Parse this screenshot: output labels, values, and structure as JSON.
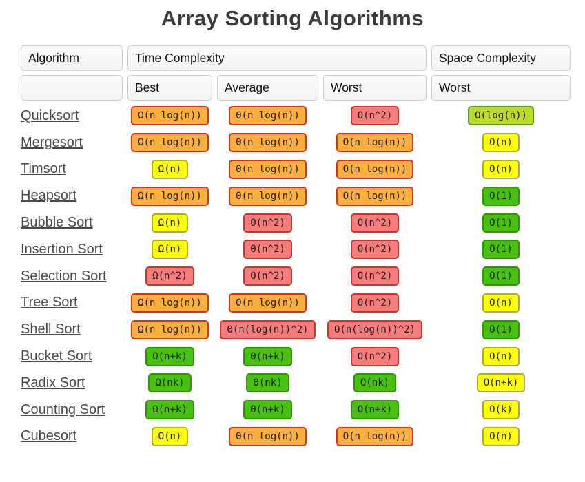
{
  "title": "Array Sorting Algorithms",
  "table": {
    "header": {
      "algorithm": "Algorithm",
      "time_complexity": "Time Complexity",
      "space_complexity": "Space Complexity",
      "sub_blank": "",
      "sub_best": "Best",
      "sub_average": "Average",
      "sub_worst_time": "Worst",
      "sub_worst_space": "Worst"
    },
    "palette": {
      "orange": {
        "bg": "#FBAF3F",
        "border": "#CC342B"
      },
      "red": {
        "bg": "#F77C7C",
        "border": "#CC342B"
      },
      "yellow": {
        "bg": "#FFFF00",
        "border": "#ACA84A"
      },
      "green": {
        "bg": "#48C10E",
        "border": "#2F9608"
      },
      "yellowgreen": {
        "bg": "#BBDB2D",
        "border": "#53A11E"
      }
    },
    "rows": [
      {
        "name": "Quicksort",
        "best": {
          "text": "Ω(n log(n))",
          "color": "orange"
        },
        "average": {
          "text": "Θ(n log(n))",
          "color": "orange"
        },
        "worst": {
          "text": "O(n^2)",
          "color": "red"
        },
        "space": {
          "text": "O(log(n))",
          "color": "yellowgreen"
        }
      },
      {
        "name": "Mergesort",
        "best": {
          "text": "Ω(n log(n))",
          "color": "orange"
        },
        "average": {
          "text": "Θ(n log(n))",
          "color": "orange"
        },
        "worst": {
          "text": "O(n log(n))",
          "color": "orange"
        },
        "space": {
          "text": "O(n)",
          "color": "yellow"
        }
      },
      {
        "name": "Timsort",
        "best": {
          "text": "Ω(n)",
          "color": "yellow"
        },
        "average": {
          "text": "Θ(n log(n))",
          "color": "orange"
        },
        "worst": {
          "text": "O(n log(n))",
          "color": "orange"
        },
        "space": {
          "text": "O(n)",
          "color": "yellow"
        }
      },
      {
        "name": "Heapsort",
        "best": {
          "text": "Ω(n log(n))",
          "color": "orange"
        },
        "average": {
          "text": "Θ(n log(n))",
          "color": "orange"
        },
        "worst": {
          "text": "O(n log(n))",
          "color": "orange"
        },
        "space": {
          "text": "O(1)",
          "color": "green"
        }
      },
      {
        "name": "Bubble Sort",
        "best": {
          "text": "Ω(n)",
          "color": "yellow"
        },
        "average": {
          "text": "Θ(n^2)",
          "color": "red"
        },
        "worst": {
          "text": "O(n^2)",
          "color": "red"
        },
        "space": {
          "text": "O(1)",
          "color": "green"
        }
      },
      {
        "name": "Insertion Sort",
        "best": {
          "text": "Ω(n)",
          "color": "yellow"
        },
        "average": {
          "text": "Θ(n^2)",
          "color": "red"
        },
        "worst": {
          "text": "O(n^2)",
          "color": "red"
        },
        "space": {
          "text": "O(1)",
          "color": "green"
        }
      },
      {
        "name": "Selection Sort",
        "best": {
          "text": "Ω(n^2)",
          "color": "red"
        },
        "average": {
          "text": "Θ(n^2)",
          "color": "red"
        },
        "worst": {
          "text": "O(n^2)",
          "color": "red"
        },
        "space": {
          "text": "O(1)",
          "color": "green"
        }
      },
      {
        "name": "Tree Sort",
        "best": {
          "text": "Ω(n log(n))",
          "color": "orange"
        },
        "average": {
          "text": "Θ(n log(n))",
          "color": "orange"
        },
        "worst": {
          "text": "O(n^2)",
          "color": "red"
        },
        "space": {
          "text": "O(n)",
          "color": "yellow"
        }
      },
      {
        "name": "Shell Sort",
        "best": {
          "text": "Ω(n log(n))",
          "color": "orange"
        },
        "average": {
          "text": "Θ(n(log(n))^2)",
          "color": "red"
        },
        "worst": {
          "text": "O(n(log(n))^2)",
          "color": "red"
        },
        "space": {
          "text": "O(1)",
          "color": "green"
        }
      },
      {
        "name": "Bucket Sort",
        "best": {
          "text": "Ω(n+k)",
          "color": "green"
        },
        "average": {
          "text": "Θ(n+k)",
          "color": "green"
        },
        "worst": {
          "text": "O(n^2)",
          "color": "red"
        },
        "space": {
          "text": "O(n)",
          "color": "yellow"
        }
      },
      {
        "name": "Radix Sort",
        "best": {
          "text": "Ω(nk)",
          "color": "green"
        },
        "average": {
          "text": "Θ(nk)",
          "color": "green"
        },
        "worst": {
          "text": "O(nk)",
          "color": "green"
        },
        "space": {
          "text": "O(n+k)",
          "color": "yellow"
        }
      },
      {
        "name": "Counting Sort",
        "best": {
          "text": "Ω(n+k)",
          "color": "green"
        },
        "average": {
          "text": "Θ(n+k)",
          "color": "green"
        },
        "worst": {
          "text": "O(n+k)",
          "color": "green"
        },
        "space": {
          "text": "O(k)",
          "color": "yellow"
        }
      },
      {
        "name": "Cubesort",
        "best": {
          "text": "Ω(n)",
          "color": "yellow"
        },
        "average": {
          "text": "Θ(n log(n))",
          "color": "orange"
        },
        "worst": {
          "text": "O(n log(n))",
          "color": "orange"
        },
        "space": {
          "text": "O(n)",
          "color": "yellow"
        }
      }
    ]
  }
}
